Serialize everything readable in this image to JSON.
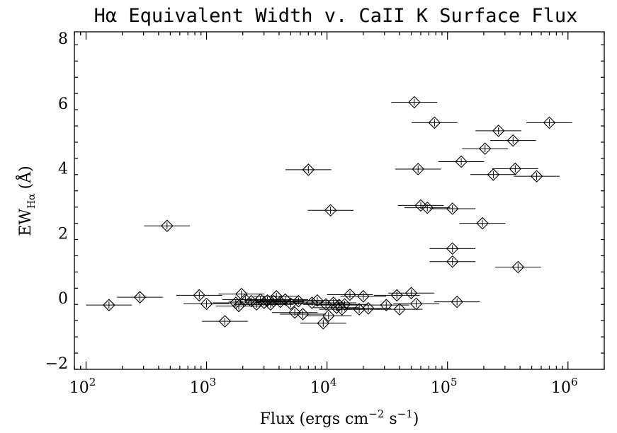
{
  "chart_data": {
    "type": "scatter",
    "title": "Hα Equivalent Width v. CaII K Surface Flux",
    "xlabel": "Flux (ergs cm⁻² s⁻¹)",
    "ylabel": "EW Hα (Å)",
    "ylabel_main": "EW",
    "ylabel_sub": "Hα",
    "ylabel_unit": "(Å)",
    "x_scale": "log",
    "xlim": [
      80,
      2000000
    ],
    "ylim": [
      -2.2,
      8.2
    ],
    "x_ticks": [
      {
        "value": 100,
        "mantissa": "10",
        "exp": "2"
      },
      {
        "value": 1000,
        "mantissa": "10",
        "exp": "3"
      },
      {
        "value": 10000,
        "mantissa": "10",
        "exp": "4"
      },
      {
        "value": 100000,
        "mantissa": "10",
        "exp": "5"
      },
      {
        "value": 1000000,
        "mantissa": "10",
        "exp": "6"
      }
    ],
    "y_ticks": [
      -2,
      0,
      2,
      4,
      6,
      8
    ],
    "y_tick_labels": [
      "−2",
      "0",
      "2",
      "4",
      "6",
      "8"
    ],
    "grid": false,
    "marker": "diamond",
    "xerr_factor": 1.55,
    "points": [
      {
        "x": 155,
        "y": -0.22
      },
      {
        "x": 280,
        "y": 0.02
      },
      {
        "x": 470,
        "y": 2.22
      },
      {
        "x": 870,
        "y": 0.08
      },
      {
        "x": 1000,
        "y": -0.18
      },
      {
        "x": 1420,
        "y": -0.72
      },
      {
        "x": 1750,
        "y": -0.15
      },
      {
        "x": 1850,
        "y": -0.25
      },
      {
        "x": 1950,
        "y": 0.12
      },
      {
        "x": 2100,
        "y": -0.05
      },
      {
        "x": 2350,
        "y": -0.1
      },
      {
        "x": 2600,
        "y": -0.2
      },
      {
        "x": 2800,
        "y": -0.05
      },
      {
        "x": 3000,
        "y": -0.15
      },
      {
        "x": 3200,
        "y": -0.08
      },
      {
        "x": 3400,
        "y": -0.2
      },
      {
        "x": 3600,
        "y": -0.1
      },
      {
        "x": 3800,
        "y": 0.05
      },
      {
        "x": 4100,
        "y": -0.12
      },
      {
        "x": 4500,
        "y": -0.05
      },
      {
        "x": 5000,
        "y": -0.18
      },
      {
        "x": 5400,
        "y": -0.45
      },
      {
        "x": 5800,
        "y": -0.1
      },
      {
        "x": 6300,
        "y": -0.5
      },
      {
        "x": 7000,
        "y": 3.95
      },
      {
        "x": 7500,
        "y": -0.15
      },
      {
        "x": 8300,
        "y": -0.08
      },
      {
        "x": 9300,
        "y": -0.78
      },
      {
        "x": 9800,
        "y": -0.2
      },
      {
        "x": 10300,
        "y": -0.55
      },
      {
        "x": 10700,
        "y": 2.7
      },
      {
        "x": 11300,
        "y": -0.15
      },
      {
        "x": 12000,
        "y": -0.3
      },
      {
        "x": 12600,
        "y": -0.22
      },
      {
        "x": 13300,
        "y": -0.35
      },
      {
        "x": 14000,
        "y": -0.2
      },
      {
        "x": 15500,
        "y": 0.1
      },
      {
        "x": 18500,
        "y": -0.35
      },
      {
        "x": 20000,
        "y": 0.05
      },
      {
        "x": 22000,
        "y": -0.32
      },
      {
        "x": 31000,
        "y": -0.22
      },
      {
        "x": 38000,
        "y": 0.08
      },
      {
        "x": 40000,
        "y": -0.35
      },
      {
        "x": 50000,
        "y": 0.15
      },
      {
        "x": 53000,
        "y": 6.03
      },
      {
        "x": 55000,
        "y": -0.18
      },
      {
        "x": 57000,
        "y": 3.97
      },
      {
        "x": 60000,
        "y": 2.85
      },
      {
        "x": 68000,
        "y": 2.78
      },
      {
        "x": 78000,
        "y": 5.4
      },
      {
        "x": 110000,
        "y": 2.75
      },
      {
        "x": 110000,
        "y": 1.52
      },
      {
        "x": 110000,
        "y": 1.12
      },
      {
        "x": 120000,
        "y": -0.12
      },
      {
        "x": 130000,
        "y": 4.2
      },
      {
        "x": 195000,
        "y": 2.3
      },
      {
        "x": 205000,
        "y": 4.6
      },
      {
        "x": 240000,
        "y": 3.8
      },
      {
        "x": 265000,
        "y": 5.15
      },
      {
        "x": 350000,
        "y": 4.85
      },
      {
        "x": 365000,
        "y": 3.98
      },
      {
        "x": 385000,
        "y": 0.95
      },
      {
        "x": 550000,
        "y": 3.75
      },
      {
        "x": 700000,
        "y": 5.4
      }
    ]
  }
}
